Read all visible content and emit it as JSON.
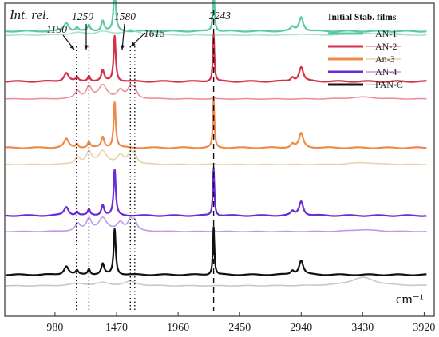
{
  "chart_data": {
    "type": "line",
    "ylabel": "Int. rel.",
    "xunit": "cm⁻¹",
    "xlim": [
      580,
      4000
    ],
    "xticks": [
      980,
      1470,
      1960,
      2450,
      2940,
      3430,
      3920
    ],
    "legend": {
      "title": "Initial Stab. films",
      "position": "top-right",
      "entries": [
        {
          "label": "AN-1",
          "color_initial": "#5cc9a3",
          "color_stab": "#a7e3cd"
        },
        {
          "label": "AN-2",
          "color_initial": "#d6304a",
          "color_stab": "#ee8f9d"
        },
        {
          "label": "An-3",
          "color_initial": "#f08a4b",
          "color_stab": "#ecd1a9"
        },
        {
          "label": "AN-4",
          "color_initial": "#6a2ad6",
          "color_stab": "#c09ae6"
        },
        {
          "label": "PAN-C",
          "color_initial": "#111111",
          "color_stab": "#c8c8c8"
        }
      ]
    },
    "annotations": [
      {
        "label": "1150",
        "x": 1150,
        "style": "dotted"
      },
      {
        "label": "1250",
        "x": 1250,
        "style": "dotted"
      },
      {
        "label": "1580",
        "x": 1580,
        "style": "dotted"
      },
      {
        "label": "1615",
        "x": 1615,
        "style": "dotted"
      },
      {
        "label": "2243",
        "x": 2243,
        "style": "dashed"
      }
    ],
    "series": [
      {
        "label": "AN-1",
        "state": "initial",
        "color": "#5cc9a3",
        "baseline": 357,
        "amp": 60,
        "peaks": [
          [
            1070,
            0.18,
            22
          ],
          [
            1155,
            0.08,
            12
          ],
          [
            1250,
            0.12,
            12
          ],
          [
            1360,
            0.22,
            14
          ],
          [
            1455,
            0.95,
            10
          ],
          [
            2243,
            1.0,
            7
          ],
          [
            2870,
            0.08,
            16
          ],
          [
            2940,
            0.3,
            20
          ]
        ]
      },
      {
        "label": "AN-1",
        "state": "stabilized",
        "color": "#a7e3cd",
        "baseline": 352,
        "amp": 30,
        "peaks": [
          [
            1160,
            0.1,
            70
          ],
          [
            1360,
            0.15,
            60
          ],
          [
            1580,
            0.22,
            60
          ],
          [
            2940,
            0.05,
            40
          ],
          [
            3430,
            0.08,
            120
          ]
        ]
      },
      {
        "label": "AN-2",
        "state": "initial",
        "color": "#d6304a",
        "baseline": 294,
        "amp": 60,
        "peaks": [
          [
            1070,
            0.18,
            22
          ],
          [
            1155,
            0.08,
            12
          ],
          [
            1250,
            0.12,
            12
          ],
          [
            1360,
            0.22,
            14
          ],
          [
            1455,
            0.95,
            10
          ],
          [
            2243,
            1.0,
            7
          ],
          [
            2870,
            0.08,
            16
          ],
          [
            2940,
            0.3,
            20
          ]
        ]
      },
      {
        "label": "AN-2",
        "state": "stabilized",
        "color": "#ee8f9d",
        "baseline": 272,
        "amp": 30,
        "peaks": [
          [
            1160,
            0.3,
            25
          ],
          [
            1250,
            0.5,
            25
          ],
          [
            1360,
            0.55,
            40
          ],
          [
            1500,
            0.35,
            30
          ],
          [
            1580,
            0.45,
            25
          ],
          [
            1615,
            0.35,
            20
          ],
          [
            2243,
            0.05,
            10
          ],
          [
            3430,
            0.08,
            120
          ]
        ]
      },
      {
        "label": "An-3",
        "state": "initial",
        "color": "#f08a4b",
        "baseline": 211,
        "amp": 60,
        "peaks": [
          [
            1070,
            0.18,
            22
          ],
          [
            1155,
            0.08,
            12
          ],
          [
            1250,
            0.12,
            12
          ],
          [
            1360,
            0.22,
            14
          ],
          [
            1455,
            0.95,
            10
          ],
          [
            2243,
            1.0,
            7
          ],
          [
            2870,
            0.08,
            16
          ],
          [
            2940,
            0.3,
            20
          ]
        ]
      },
      {
        "label": "An-3",
        "state": "stabilized",
        "color": "#ecd1a9",
        "baseline": 190,
        "amp": 30,
        "peaks": [
          [
            1160,
            0.3,
            25
          ],
          [
            1250,
            0.5,
            25
          ],
          [
            1360,
            0.55,
            40
          ],
          [
            1500,
            0.35,
            30
          ],
          [
            1580,
            0.45,
            25
          ],
          [
            1615,
            0.35,
            20
          ],
          [
            2243,
            0.05,
            10
          ],
          [
            3430,
            0.08,
            120
          ]
        ]
      },
      {
        "label": "AN-4",
        "state": "initial",
        "color": "#6a2ad6",
        "baseline": 126,
        "amp": 60,
        "peaks": [
          [
            1070,
            0.18,
            22
          ],
          [
            1155,
            0.08,
            12
          ],
          [
            1250,
            0.12,
            12
          ],
          [
            1360,
            0.22,
            14
          ],
          [
            1455,
            0.95,
            10
          ],
          [
            2243,
            1.0,
            7
          ],
          [
            2870,
            0.08,
            16
          ],
          [
            2940,
            0.3,
            20
          ]
        ]
      },
      {
        "label": "AN-4",
        "state": "stabilized",
        "color": "#c09ae6",
        "baseline": 106,
        "amp": 30,
        "peaks": [
          [
            1160,
            0.3,
            25
          ],
          [
            1250,
            0.5,
            25
          ],
          [
            1360,
            0.55,
            40
          ],
          [
            1500,
            0.35,
            30
          ],
          [
            1580,
            0.45,
            25
          ],
          [
            1615,
            0.35,
            20
          ],
          [
            2243,
            0.05,
            10
          ],
          [
            3430,
            0.08,
            120
          ]
        ]
      },
      {
        "label": "PAN-C",
        "state": "initial",
        "color": "#111111",
        "baseline": 52,
        "amp": 60,
        "peaks": [
          [
            1070,
            0.18,
            22
          ],
          [
            1155,
            0.08,
            12
          ],
          [
            1250,
            0.12,
            12
          ],
          [
            1360,
            0.22,
            14
          ],
          [
            1455,
            0.95,
            10
          ],
          [
            2243,
            1.0,
            7
          ],
          [
            2870,
            0.08,
            16
          ],
          [
            2940,
            0.3,
            20
          ]
        ]
      },
      {
        "label": "PAN-C",
        "state": "stabilized",
        "color": "#c8c8c8",
        "baseline": 38,
        "amp": 30,
        "peaks": [
          [
            1160,
            0.1,
            70
          ],
          [
            1360,
            0.12,
            60
          ],
          [
            1580,
            0.18,
            60
          ],
          [
            3430,
            0.35,
            120
          ]
        ]
      }
    ]
  }
}
